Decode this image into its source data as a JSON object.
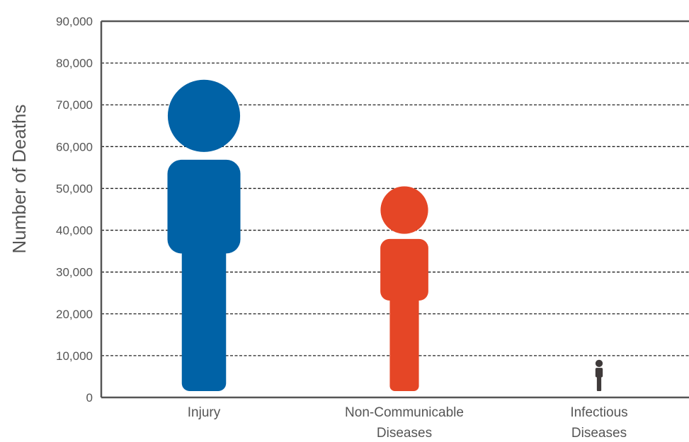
{
  "chart_data": {
    "type": "bar",
    "ylabel": "Number of Deaths",
    "xlabel": "",
    "ylim": [
      0,
      90000
    ],
    "yticks": [
      0,
      10000,
      20000,
      30000,
      40000,
      50000,
      60000,
      70000,
      80000,
      90000
    ],
    "ytick_labels": [
      "0",
      "10,000",
      "20,000",
      "30,000",
      "40,000",
      "50,000",
      "60,000",
      "70,000",
      "80,000",
      "90,000"
    ],
    "grid": true,
    "categories": [
      {
        "lines": [
          "Injury"
        ]
      },
      {
        "lines": [
          "Non-Communicable",
          "Diseases"
        ]
      },
      {
        "lines": [
          "Infectious",
          "Diseases"
        ]
      }
    ],
    "values": [
      76000,
      50500,
      9000
    ],
    "colors": [
      "#0062A6",
      "#E54626",
      "#3F3A3A"
    ],
    "marker": "person-icon"
  }
}
